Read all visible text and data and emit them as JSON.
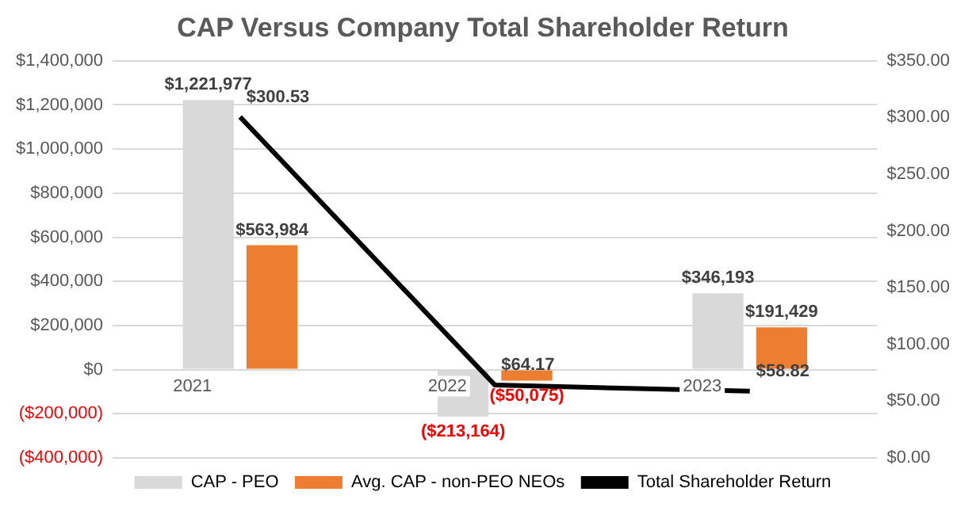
{
  "chart_data": {
    "type": "bar",
    "title": "CAP Versus Company Total Shareholder Return",
    "categories": [
      "2021",
      "2022",
      "2023"
    ],
    "series": [
      {
        "name": "CAP - PEO",
        "color": "#d9d9d9",
        "values": [
          1221977,
          -213164,
          346193
        ],
        "value_labels": [
          "$1,221,977",
          "($213,164)",
          "$346,193"
        ]
      },
      {
        "name": "Avg. CAP - non-PEO NEOs",
        "color": "#ed7d31",
        "values": [
          563984,
          -50075,
          191429
        ],
        "value_labels": [
          "$563,984",
          "($50,075)",
          "$191,429"
        ]
      },
      {
        "name": "Total Shareholder Return",
        "type": "line",
        "axis": "y2",
        "color": "#000000",
        "values": [
          300.53,
          64.17,
          58.82
        ],
        "value_labels": [
          "$300.53",
          "$64.17",
          "$58.82"
        ]
      }
    ],
    "ylim": [
      -400000,
      1400000
    ],
    "yticks": [
      {
        "value": -400000,
        "label": "($400,000)"
      },
      {
        "value": -200000,
        "label": "($200,000)"
      },
      {
        "value": 0,
        "label": "$0"
      },
      {
        "value": 200000,
        "label": "$200,000"
      },
      {
        "value": 400000,
        "label": "$400,000"
      },
      {
        "value": 600000,
        "label": "$600,000"
      },
      {
        "value": 800000,
        "label": "$800,000"
      },
      {
        "value": 1000000,
        "label": "$1,000,000"
      },
      {
        "value": 1200000,
        "label": "$1,200,000"
      },
      {
        "value": 1400000,
        "label": "$1,400,000"
      }
    ],
    "y2lim": [
      0,
      350
    ],
    "y2ticks": [
      {
        "value": 0,
        "label": "$0.00"
      },
      {
        "value": 50,
        "label": "$50.00"
      },
      {
        "value": 100,
        "label": "$100.00"
      },
      {
        "value": 150,
        "label": "$150.00"
      },
      {
        "value": 200,
        "label": "$200.00"
      },
      {
        "value": 250,
        "label": "$250.00"
      },
      {
        "value": 300,
        "label": "$300.00"
      },
      {
        "value": 350,
        "label": "$350.00"
      }
    ],
    "grid": "y",
    "legend": "bottom",
    "marker": "none",
    "line_style": "solid"
  }
}
